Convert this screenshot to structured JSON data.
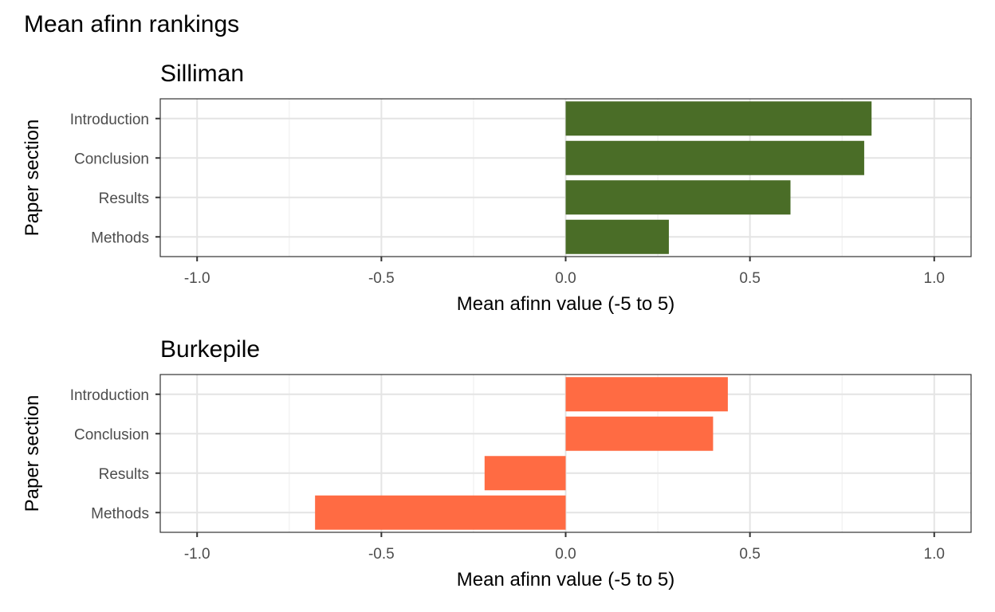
{
  "title": "Mean afinn rankings",
  "chart_data": [
    {
      "type": "bar",
      "orientation": "horizontal",
      "title": "Silliman",
      "xlabel": "Mean afinn value (-5 to 5)",
      "ylabel": "Paper section",
      "categories": [
        "Introduction",
        "Conclusion",
        "Results",
        "Methods"
      ],
      "values": [
        0.83,
        0.81,
        0.61,
        0.28
      ],
      "xlim": [
        -1.1,
        1.1
      ],
      "xticks": [
        -1.0,
        -0.5,
        0.0,
        0.5,
        1.0
      ],
      "xtick_labels": [
        "-1.0",
        "-0.5",
        "0.0",
        "0.5",
        "1.0"
      ],
      "grid": true,
      "bar_color": "#4A6D27"
    },
    {
      "type": "bar",
      "orientation": "horizontal",
      "title": "Burkepile",
      "xlabel": "Mean afinn value (-5 to 5)",
      "ylabel": "Paper section",
      "categories": [
        "Introduction",
        "Conclusion",
        "Results",
        "Methods"
      ],
      "values": [
        0.44,
        0.4,
        -0.22,
        -0.68
      ],
      "xlim": [
        -1.1,
        1.1
      ],
      "xticks": [
        -1.0,
        -0.5,
        0.0,
        0.5,
        1.0
      ],
      "xtick_labels": [
        "-1.0",
        "-0.5",
        "0.0",
        "0.5",
        "1.0"
      ],
      "grid": true,
      "bar_color": "#FF6B43"
    }
  ]
}
